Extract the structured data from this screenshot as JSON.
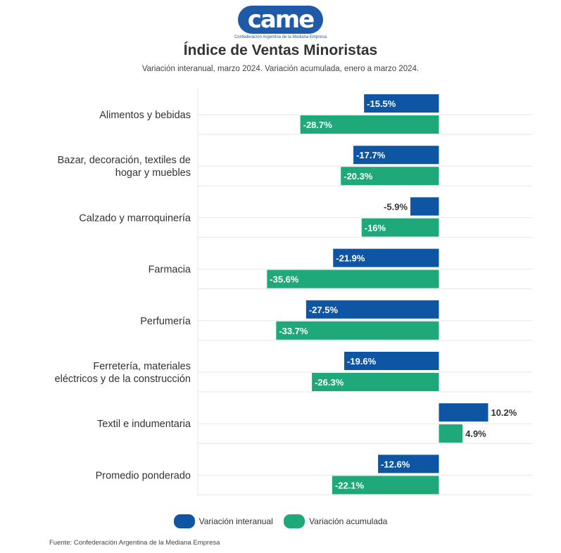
{
  "logo": {
    "mark": "came",
    "subtitle": "Confederación Argentina de la Mediana Empresa"
  },
  "colors": {
    "interanual": "#0e55a3",
    "acumulada": "#1fa97a",
    "grid": "#e6e6e6"
  },
  "chart_data": {
    "type": "bar",
    "orientation": "horizontal",
    "title": "Índice de Ventas Minoristas",
    "subtitle": "Variación interanual, marzo 2024. Variación acumulada, enero a marzo 2024.",
    "categories": [
      [
        "Alimentos y bebidas"
      ],
      [
        "Bazar, decoración, textiles de",
        "hogar y muebles"
      ],
      [
        "Calzado y marroquinería"
      ],
      [
        "Farmacia"
      ],
      [
        "Perfumería"
      ],
      [
        "Ferretería, materiales",
        "eléctricos y de la construcción"
      ],
      [
        "Textil e indumentaria"
      ],
      [
        "Promedio ponderado"
      ]
    ],
    "series": [
      {
        "name": "Variación interanual",
        "color": "#0e55a3",
        "values": [
          -15.5,
          -17.7,
          -5.9,
          -21.9,
          -27.5,
          -19.6,
          10.2,
          -12.6
        ],
        "labels": [
          "-15.5%",
          "-17.7%",
          "-5.9%",
          "-21.9%",
          "-27.5%",
          "-19.6%",
          "10.2%",
          "-12.6%"
        ]
      },
      {
        "name": "Variación acumulada",
        "color": "#1fa97a",
        "values": [
          -28.7,
          -20.3,
          -16,
          -35.6,
          -33.7,
          -26.3,
          4.9,
          -22.1
        ],
        "labels": [
          "-28.7%",
          "-20.3%",
          "-16%",
          "-35.6%",
          "-33.7%",
          "-26.3%",
          "4.9%",
          "-22.1%"
        ]
      }
    ],
    "xlim": [
      -50,
      20
    ],
    "grid": true,
    "legend": "bottom"
  },
  "source": "Fuente: Confederación Argentina de la Mediana Empresa"
}
